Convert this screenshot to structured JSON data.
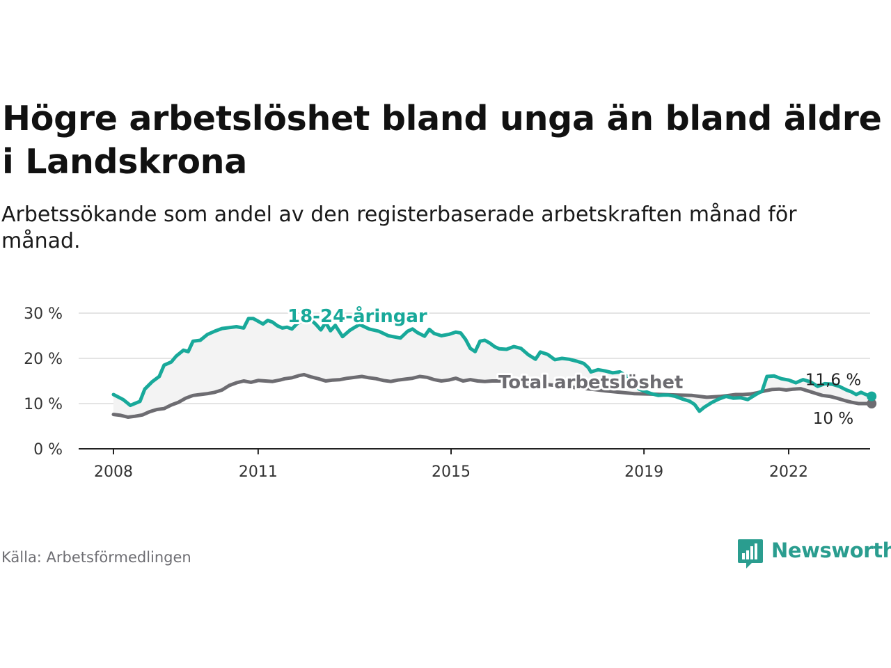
{
  "title": "Högre arbetslöshet bland unga än bland äldre i Landskrona",
  "subtitle": "Arbetssökande som andel av den registerbaserade arbetskraften månad för månad.",
  "source": "Källa: Arbetsförmedlingen",
  "brand": "Newsworthy",
  "colors": {
    "youth": "#18a99a",
    "total": "#6d6c71",
    "brand": "#2a9d8f",
    "band": "#f3f3f3",
    "axis": "#222222",
    "grid": "#dcdcdc"
  },
  "chart_data": {
    "type": "line",
    "title": "Högre arbetslöshet bland unga än bland äldre i Landskrona",
    "xlabel": "",
    "ylabel": "",
    "xlim": [
      2007.4,
      2023.8
    ],
    "ylim": [
      0,
      30
    ],
    "y_ticks": [
      0,
      10,
      20,
      30
    ],
    "y_tick_labels": [
      "0 %",
      "10 %",
      "20 %",
      "30 %"
    ],
    "x_ticks": [
      2008,
      2011,
      2015,
      2019,
      2022
    ],
    "x_tick_labels": [
      "2008",
      "2011",
      "2015",
      "2019",
      "2022"
    ],
    "grid": true,
    "series": [
      {
        "name": "18-24-åringar",
        "label": "18-24-åringar",
        "end_label": "11,6 %",
        "points": [
          [
            2008.0,
            12.0
          ],
          [
            2008.2,
            10.9
          ],
          [
            2008.35,
            9.6
          ],
          [
            2008.55,
            10.5
          ],
          [
            2008.65,
            13.2
          ],
          [
            2008.8,
            14.8
          ],
          [
            2008.95,
            16.0
          ],
          [
            2009.05,
            18.5
          ],
          [
            2009.2,
            19.2
          ],
          [
            2009.3,
            20.5
          ],
          [
            2009.45,
            21.8
          ],
          [
            2009.55,
            21.5
          ],
          [
            2009.65,
            23.8
          ],
          [
            2009.8,
            24.0
          ],
          [
            2009.95,
            25.3
          ],
          [
            2010.1,
            26.0
          ],
          [
            2010.25,
            26.6
          ],
          [
            2010.4,
            26.8
          ],
          [
            2010.55,
            27.0
          ],
          [
            2010.7,
            26.7
          ],
          [
            2010.8,
            28.8
          ],
          [
            2010.9,
            28.8
          ],
          [
            2011.0,
            28.2
          ],
          [
            2011.1,
            27.6
          ],
          [
            2011.2,
            28.4
          ],
          [
            2011.3,
            28.0
          ],
          [
            2011.4,
            27.2
          ],
          [
            2011.5,
            26.7
          ],
          [
            2011.6,
            26.9
          ],
          [
            2011.7,
            26.5
          ],
          [
            2011.8,
            27.6
          ],
          [
            2011.9,
            28.3
          ],
          [
            2011.95,
            30.5
          ],
          [
            2012.05,
            29.0
          ],
          [
            2012.2,
            27.5
          ],
          [
            2012.3,
            26.3
          ],
          [
            2012.4,
            27.9
          ],
          [
            2012.5,
            26.1
          ],
          [
            2012.6,
            27.3
          ],
          [
            2012.75,
            24.8
          ],
          [
            2012.9,
            26.2
          ],
          [
            2013.1,
            27.5
          ],
          [
            2013.3,
            26.5
          ],
          [
            2013.5,
            26.0
          ],
          [
            2013.7,
            25.0
          ],
          [
            2013.95,
            24.5
          ],
          [
            2014.1,
            26.0
          ],
          [
            2014.2,
            26.5
          ],
          [
            2014.3,
            25.7
          ],
          [
            2014.45,
            24.9
          ],
          [
            2014.55,
            26.4
          ],
          [
            2014.65,
            25.5
          ],
          [
            2014.8,
            25.0
          ],
          [
            2014.95,
            25.3
          ],
          [
            2015.1,
            25.8
          ],
          [
            2015.2,
            25.6
          ],
          [
            2015.3,
            24.2
          ],
          [
            2015.4,
            22.2
          ],
          [
            2015.5,
            21.5
          ],
          [
            2015.6,
            23.8
          ],
          [
            2015.7,
            24.0
          ],
          [
            2015.8,
            23.4
          ],
          [
            2015.9,
            22.6
          ],
          [
            2016.0,
            22.1
          ],
          [
            2016.15,
            22.0
          ],
          [
            2016.3,
            22.6
          ],
          [
            2016.45,
            22.2
          ],
          [
            2016.6,
            20.8
          ],
          [
            2016.75,
            19.8
          ],
          [
            2016.85,
            21.4
          ],
          [
            2017.0,
            20.9
          ],
          [
            2017.15,
            19.7
          ],
          [
            2017.3,
            20.0
          ],
          [
            2017.45,
            19.8
          ],
          [
            2017.6,
            19.4
          ],
          [
            2017.75,
            18.9
          ],
          [
            2017.85,
            17.9
          ],
          [
            2017.9,
            17.0
          ],
          [
            2018.05,
            17.5
          ],
          [
            2018.2,
            17.2
          ],
          [
            2018.35,
            16.8
          ],
          [
            2018.5,
            17.0
          ],
          [
            2018.65,
            16.0
          ],
          [
            2018.8,
            15.0
          ],
          [
            2018.9,
            13.2
          ],
          [
            2019.0,
            12.8
          ],
          [
            2019.15,
            12.2
          ],
          [
            2019.3,
            11.8
          ],
          [
            2019.4,
            11.9
          ],
          [
            2019.5,
            11.9
          ],
          [
            2019.65,
            11.6
          ],
          [
            2019.8,
            11.0
          ],
          [
            2019.95,
            10.5
          ],
          [
            2020.05,
            9.8
          ],
          [
            2020.15,
            8.3
          ],
          [
            2020.25,
            9.2
          ],
          [
            2020.4,
            10.2
          ],
          [
            2020.55,
            11.0
          ],
          [
            2020.7,
            11.6
          ],
          [
            2020.85,
            11.2
          ],
          [
            2021.0,
            11.3
          ],
          [
            2021.15,
            10.9
          ],
          [
            2021.3,
            11.9
          ],
          [
            2021.45,
            12.8
          ],
          [
            2021.55,
            16.0
          ],
          [
            2021.7,
            16.1
          ],
          [
            2021.85,
            15.5
          ],
          [
            2022.0,
            15.2
          ],
          [
            2022.15,
            14.6
          ],
          [
            2022.3,
            15.3
          ],
          [
            2022.45,
            14.8
          ],
          [
            2022.6,
            13.8
          ],
          [
            2022.75,
            14.4
          ],
          [
            2022.9,
            14.3
          ],
          [
            2023.05,
            13.8
          ],
          [
            2023.2,
            13.0
          ],
          [
            2023.3,
            12.6
          ],
          [
            2023.4,
            12.0
          ],
          [
            2023.5,
            12.5
          ],
          [
            2023.6,
            12.0
          ],
          [
            2023.72,
            11.6
          ]
        ]
      },
      {
        "name": "Total arbetslöshet",
        "label": "Total arbetslöshet",
        "end_label": "10 %",
        "points": [
          [
            2008.0,
            7.6
          ],
          [
            2008.15,
            7.4
          ],
          [
            2008.3,
            7.0
          ],
          [
            2008.45,
            7.2
          ],
          [
            2008.6,
            7.5
          ],
          [
            2008.75,
            8.2
          ],
          [
            2008.9,
            8.7
          ],
          [
            2009.05,
            8.9
          ],
          [
            2009.2,
            9.7
          ],
          [
            2009.35,
            10.3
          ],
          [
            2009.5,
            11.2
          ],
          [
            2009.65,
            11.8
          ],
          [
            2009.8,
            12.0
          ],
          [
            2009.95,
            12.2
          ],
          [
            2010.1,
            12.5
          ],
          [
            2010.25,
            13.0
          ],
          [
            2010.4,
            14.0
          ],
          [
            2010.55,
            14.6
          ],
          [
            2010.7,
            15.0
          ],
          [
            2010.85,
            14.7
          ],
          [
            2011.0,
            15.1
          ],
          [
            2011.15,
            15.0
          ],
          [
            2011.3,
            14.9
          ],
          [
            2011.45,
            15.2
          ],
          [
            2011.55,
            15.5
          ],
          [
            2011.7,
            15.7
          ],
          [
            2011.85,
            16.2
          ],
          [
            2011.95,
            16.4
          ],
          [
            2012.1,
            15.9
          ],
          [
            2012.25,
            15.5
          ],
          [
            2012.4,
            15.0
          ],
          [
            2012.55,
            15.2
          ],
          [
            2012.7,
            15.3
          ],
          [
            2012.85,
            15.6
          ],
          [
            2013.0,
            15.8
          ],
          [
            2013.15,
            16.0
          ],
          [
            2013.3,
            15.7
          ],
          [
            2013.45,
            15.5
          ],
          [
            2013.6,
            15.1
          ],
          [
            2013.75,
            14.9
          ],
          [
            2013.9,
            15.2
          ],
          [
            2014.05,
            15.4
          ],
          [
            2014.2,
            15.6
          ],
          [
            2014.35,
            16.0
          ],
          [
            2014.5,
            15.8
          ],
          [
            2014.65,
            15.3
          ],
          [
            2014.8,
            15.0
          ],
          [
            2014.95,
            15.2
          ],
          [
            2015.1,
            15.6
          ],
          [
            2015.25,
            15.0
          ],
          [
            2015.4,
            15.3
          ],
          [
            2015.55,
            15.0
          ],
          [
            2015.7,
            14.9
          ],
          [
            2015.85,
            15.0
          ],
          [
            2016.0,
            15.0
          ],
          [
            2016.15,
            15.0
          ],
          [
            2016.4,
            14.8
          ],
          [
            2016.7,
            14.5
          ],
          [
            2017.0,
            14.2
          ],
          [
            2017.3,
            13.9
          ],
          [
            2017.6,
            13.5
          ],
          [
            2017.9,
            13.2
          ],
          [
            2018.2,
            12.8
          ],
          [
            2018.5,
            12.5
          ],
          [
            2018.8,
            12.2
          ],
          [
            2019.1,
            12.1
          ],
          [
            2019.4,
            12.0
          ],
          [
            2019.7,
            11.9
          ],
          [
            2020.0,
            11.8
          ],
          [
            2020.15,
            11.6
          ],
          [
            2020.3,
            11.4
          ],
          [
            2020.45,
            11.5
          ],
          [
            2020.6,
            11.6
          ],
          [
            2020.75,
            11.8
          ],
          [
            2020.9,
            12.0
          ],
          [
            2021.05,
            12.0
          ],
          [
            2021.2,
            12.1
          ],
          [
            2021.35,
            12.4
          ],
          [
            2021.5,
            12.8
          ],
          [
            2021.65,
            13.1
          ],
          [
            2021.8,
            13.2
          ],
          [
            2021.95,
            13.0
          ],
          [
            2022.1,
            13.2
          ],
          [
            2022.25,
            13.3
          ],
          [
            2022.4,
            12.8
          ],
          [
            2022.55,
            12.3
          ],
          [
            2022.7,
            11.8
          ],
          [
            2022.85,
            11.6
          ],
          [
            2023.0,
            11.2
          ],
          [
            2023.15,
            10.7
          ],
          [
            2023.3,
            10.3
          ],
          [
            2023.45,
            10.0
          ],
          [
            2023.6,
            10.0
          ],
          [
            2023.72,
            10.0
          ]
        ]
      }
    ]
  }
}
